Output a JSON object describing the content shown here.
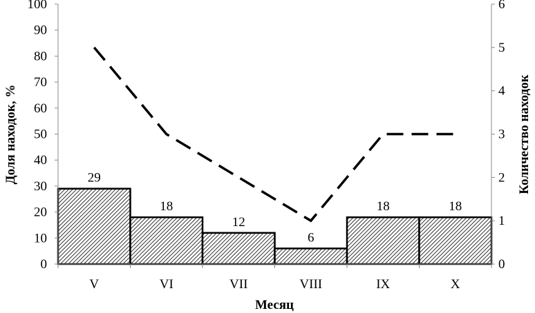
{
  "chart_data": {
    "type": "bar",
    "categories": [
      "V",
      "VI",
      "VII",
      "VIII",
      "IX",
      "X"
    ],
    "series": [
      {
        "name": "Доля находок, %",
        "kind": "bar",
        "axis": "left",
        "values": [
          29,
          18,
          12,
          6,
          18,
          18
        ],
        "data_labels": [
          "29",
          "18",
          "12",
          "6",
          "18",
          "18"
        ]
      },
      {
        "name": "Количество находок",
        "kind": "line",
        "style": "dashed",
        "axis": "right",
        "values": [
          5,
          3,
          2,
          1,
          3,
          3
        ]
      }
    ],
    "xlabel": "Месяц",
    "ylabel": "Доля находок, %",
    "y2label": "Количество находок",
    "ylim": [
      0,
      100
    ],
    "yticks": [
      "0",
      "10",
      "20",
      "30",
      "40",
      "50",
      "60",
      "70",
      "80",
      "90",
      "100"
    ],
    "y2lim": [
      0,
      6
    ],
    "y2ticks": [
      "0",
      "1",
      "2",
      "3",
      "4",
      "5",
      "6"
    ],
    "grid": false,
    "colors": {
      "bar_hatch": "#000000",
      "line": "#000000"
    }
  }
}
